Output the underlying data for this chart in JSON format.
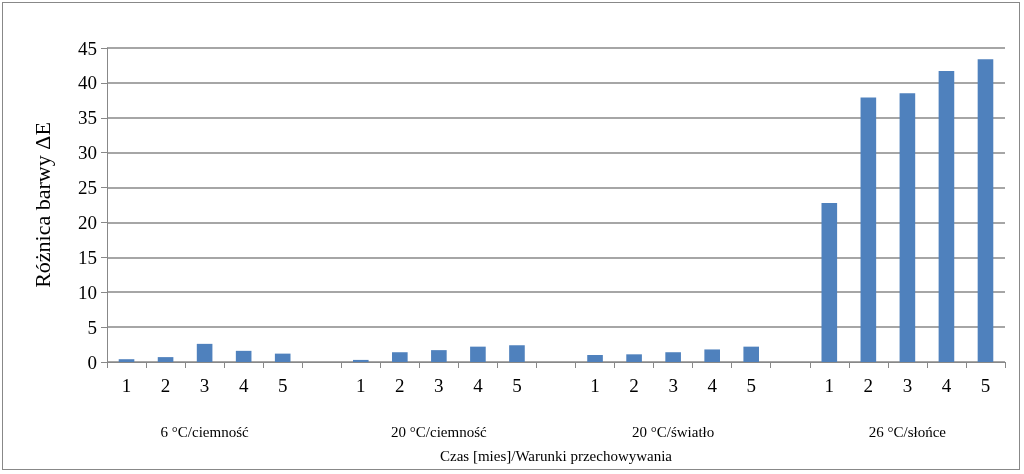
{
  "chart_data": {
    "type": "bar",
    "categories": [
      "1",
      "2",
      "3",
      "4",
      "5",
      null,
      "1",
      "2",
      "3",
      "4",
      "5",
      null,
      "1",
      "2",
      "3",
      "4",
      "5",
      null,
      "1",
      "2",
      "3",
      "4",
      "5"
    ],
    "values": [
      0.4,
      0.7,
      2.6,
      1.6,
      1.2,
      null,
      0.3,
      1.4,
      1.7,
      2.2,
      2.4,
      null,
      1.0,
      1.1,
      1.4,
      1.8,
      2.2,
      null,
      22.8,
      37.9,
      38.5,
      41.7,
      43.4
    ],
    "color": "#4f81bd",
    "ylabel": "Różnica barwy ΔE",
    "xlabel": "Czas [mies]/Warunki przechowywania",
    "annotations": [
      "6 °C/ciemność",
      "20 °C/ciemność",
      "20 °C/światło",
      "26 °C/słońce"
    ],
    "ylim": [
      0,
      45
    ],
    "yticks": [
      0,
      5,
      10,
      15,
      20,
      25,
      30,
      35,
      40,
      45
    ],
    "grid": "y"
  }
}
